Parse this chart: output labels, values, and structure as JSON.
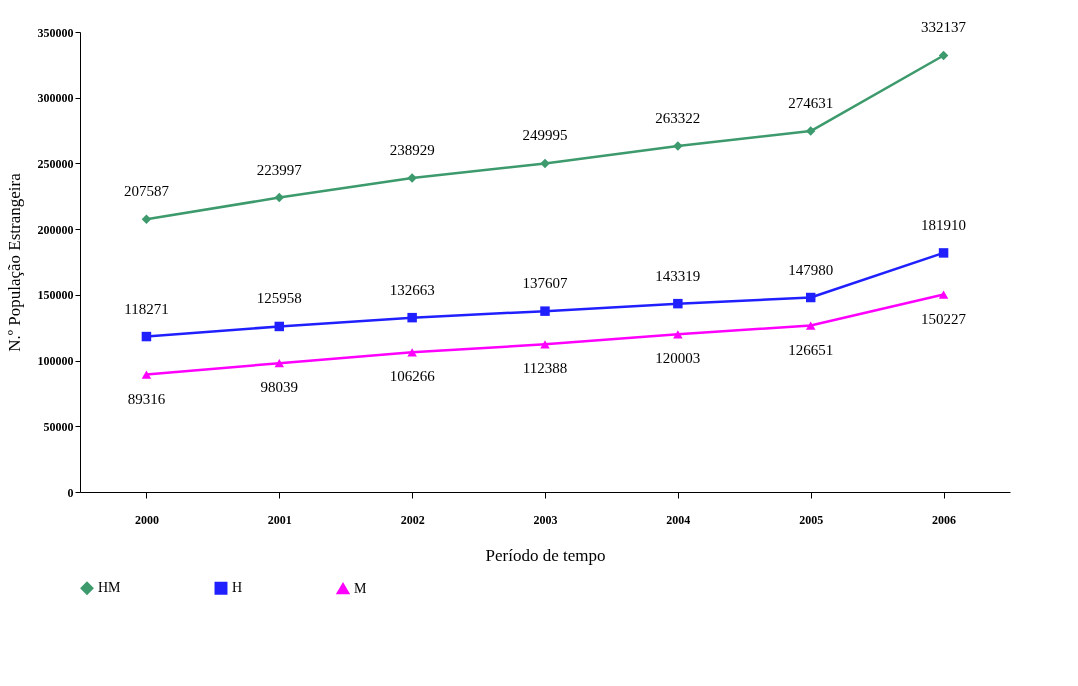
{
  "chart_data": {
    "type": "line",
    "xlabel": "Período de tempo",
    "ylabel": "N.º População Estrangeira",
    "categories": [
      "2000",
      "2001",
      "2002",
      "2003",
      "2004",
      "2005",
      "2006"
    ],
    "series": [
      {
        "name": "HM",
        "color": "#3c9a6c",
        "marker": "diamond",
        "values": [
          207587,
          223997,
          238929,
          249995,
          263322,
          274631,
          332137
        ]
      },
      {
        "name": "H",
        "color": "#2020ff",
        "marker": "square",
        "values": [
          118271,
          125958,
          132663,
          137607,
          143319,
          147980,
          181910
        ]
      },
      {
        "name": "M",
        "color": "#ff00ff",
        "marker": "triangle",
        "values": [
          89316,
          98039,
          106266,
          112388,
          120003,
          126651,
          150227
        ]
      }
    ],
    "ylim": [
      0,
      350000
    ],
    "yticks": [
      0,
      50000,
      100000,
      150000,
      200000,
      250000,
      300000,
      350000
    ],
    "grid": false,
    "legend": "bottom",
    "data_labels": true,
    "line_style": "solid"
  }
}
